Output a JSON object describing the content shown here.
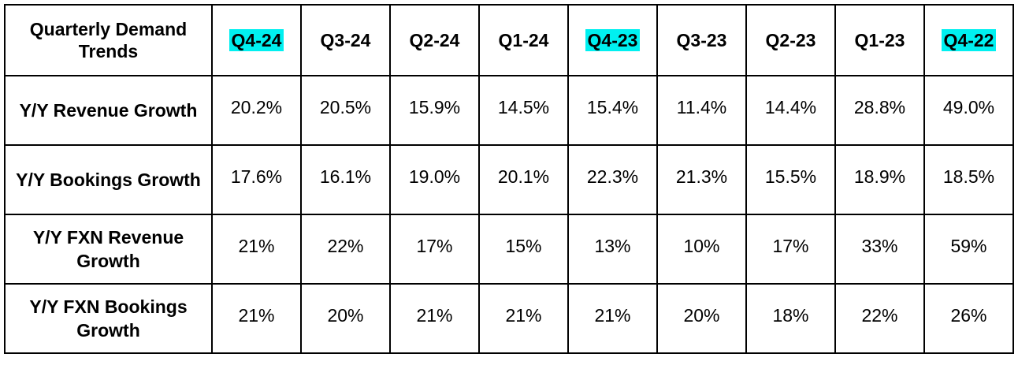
{
  "chart_data": {
    "type": "table",
    "corner_label": "Quarterly Demand Trends",
    "highlight_color": "#00F0F0",
    "columns": [
      {
        "label": "Q4-24",
        "highlighted": true
      },
      {
        "label": "Q3-24",
        "highlighted": false
      },
      {
        "label": "Q2-24",
        "highlighted": false
      },
      {
        "label": "Q1-24",
        "highlighted": false
      },
      {
        "label": "Q4-23",
        "highlighted": true
      },
      {
        "label": "Q3-23",
        "highlighted": false
      },
      {
        "label": "Q2-23",
        "highlighted": false
      },
      {
        "label": "Q1-23",
        "highlighted": false
      },
      {
        "label": "Q4-22",
        "highlighted": true
      }
    ],
    "rows": [
      {
        "label": "Y/Y Revenue Growth",
        "values": [
          "20.2%",
          "20.5%",
          "15.9%",
          "14.5%",
          "15.4%",
          "11.4%",
          "14.4%",
          "28.8%",
          "49.0%"
        ]
      },
      {
        "label": "Y/Y Bookings Growth",
        "values": [
          "17.6%",
          "16.1%",
          "19.0%",
          "20.1%",
          "22.3%",
          "21.3%",
          "15.5%",
          "18.9%",
          "18.5%"
        ]
      },
      {
        "label": "Y/Y FXN Revenue Growth",
        "values": [
          "21%",
          "22%",
          "17%",
          "15%",
          "13%",
          "10%",
          "17%",
          "33%",
          "59%"
        ]
      },
      {
        "label": "Y/Y FXN Bookings Growth",
        "values": [
          "21%",
          "20%",
          "21%",
          "21%",
          "21%",
          "20%",
          "18%",
          "22%",
          "26%"
        ]
      }
    ]
  }
}
